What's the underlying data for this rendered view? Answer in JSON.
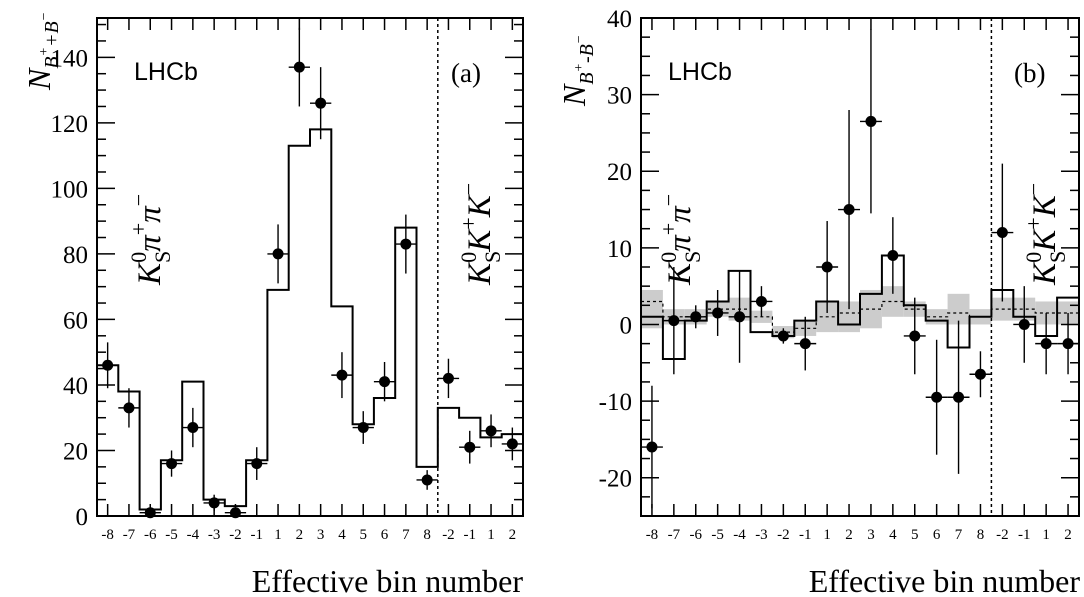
{
  "figure": {
    "xlabel": "Effective bin number",
    "experiment_label": "LHCb"
  },
  "chart_data": [
    {
      "type": "histogram",
      "panel_label": "(a)",
      "ylabel": "N_{B^{+}+B^{-}}",
      "xlabel": "Effective bin number",
      "experiment_label": "LHCb",
      "ylim": [
        0,
        152
      ],
      "yticks": [
        0,
        20,
        40,
        60,
        80,
        100,
        120,
        140
      ],
      "x_tick_labels": [
        "-8",
        "-7",
        "-6",
        "-5",
        "-4",
        "-3",
        "-2",
        "-1",
        "1",
        "2",
        "3",
        "4",
        "5",
        "6",
        "7",
        "8",
        "-2",
        "-1",
        "1",
        "2"
      ],
      "region_labels": [
        "K_S^0 π+ π−",
        "K_S^0 K+ K−"
      ],
      "separator_after_bin": 16,
      "series": [
        {
          "name": "data",
          "style": "points",
          "values": [
            46,
            33,
            1,
            16,
            27,
            4,
            1,
            16,
            80,
            137,
            126,
            43,
            27,
            41,
            83,
            11,
            42,
            21,
            26,
            22
          ],
          "errors": [
            7,
            6,
            1.5,
            4,
            6,
            2.5,
            1.5,
            5,
            9,
            12,
            11,
            7,
            5,
            6,
            9,
            3,
            6,
            5,
            5,
            5
          ]
        },
        {
          "name": "fit",
          "style": "step",
          "values": [
            46,
            38,
            2,
            17,
            41,
            5,
            3,
            17,
            69,
            113,
            118,
            64,
            28,
            36,
            88,
            15,
            33,
            30,
            24,
            25
          ]
        }
      ]
    },
    {
      "type": "histogram",
      "panel_label": "(b)",
      "ylabel": "N_{B^{+}-B^{-}}",
      "xlabel": "Effective bin number",
      "experiment_label": "LHCb",
      "ylim": [
        -25,
        40
      ],
      "yticks": [
        -20,
        -10,
        0,
        10,
        20,
        30,
        40
      ],
      "x_tick_labels": [
        "-8",
        "-7",
        "-6",
        "-5",
        "-4",
        "-3",
        "-2",
        "-1",
        "1",
        "2",
        "3",
        "4",
        "5",
        "6",
        "7",
        "8",
        "-2",
        "-1",
        "1",
        "2"
      ],
      "region_labels": [
        "K_S^0 π+ π−",
        "K_S^0 K+ K−"
      ],
      "separator_after_bin": 16,
      "series": [
        {
          "name": "data",
          "style": "points",
          "values": [
            -16,
            0.5,
            1,
            1.5,
            1,
            3,
            -1.5,
            -2.5,
            7.5,
            15,
            26.5,
            9,
            -1.5,
            -9.5,
            -9.5,
            -6.5,
            12,
            0,
            -2.5,
            -2.5
          ],
          "errors": [
            8,
            7,
            1.5,
            3,
            6,
            2,
            1,
            3.5,
            6,
            13,
            12,
            5,
            5,
            7.5,
            10,
            3,
            9,
            5,
            4,
            4
          ]
        },
        {
          "name": "fit",
          "style": "step",
          "values": [
            1,
            -4.5,
            0.5,
            3,
            7,
            -1,
            -1.5,
            0.5,
            3,
            0,
            4,
            9,
            2.5,
            0.5,
            -3,
            1,
            4.5,
            1,
            -1.5,
            3.5
          ]
        },
        {
          "name": "band",
          "style": "band",
          "center": [
            2,
            1,
            1,
            2,
            2,
            1,
            -1,
            -0.5,
            1,
            1,
            2,
            3,
            2,
            1,
            2,
            1,
            2,
            2,
            1.5,
            1.5
          ],
          "halfwidth": [
            2.5,
            1,
            1,
            1,
            1.5,
            0.8,
            0.8,
            1,
            2,
            2,
            2.5,
            2,
            1,
            1,
            2,
            1,
            1.5,
            1.5,
            1.5,
            1.5
          ]
        },
        {
          "name": "dotted",
          "style": "dotted-line",
          "values": [
            3,
            1,
            1,
            2,
            2,
            1,
            -1,
            -0.5,
            1,
            1.5,
            2,
            3,
            2,
            1,
            1.5,
            1,
            2,
            2,
            1.5,
            1.5
          ]
        }
      ]
    }
  ]
}
